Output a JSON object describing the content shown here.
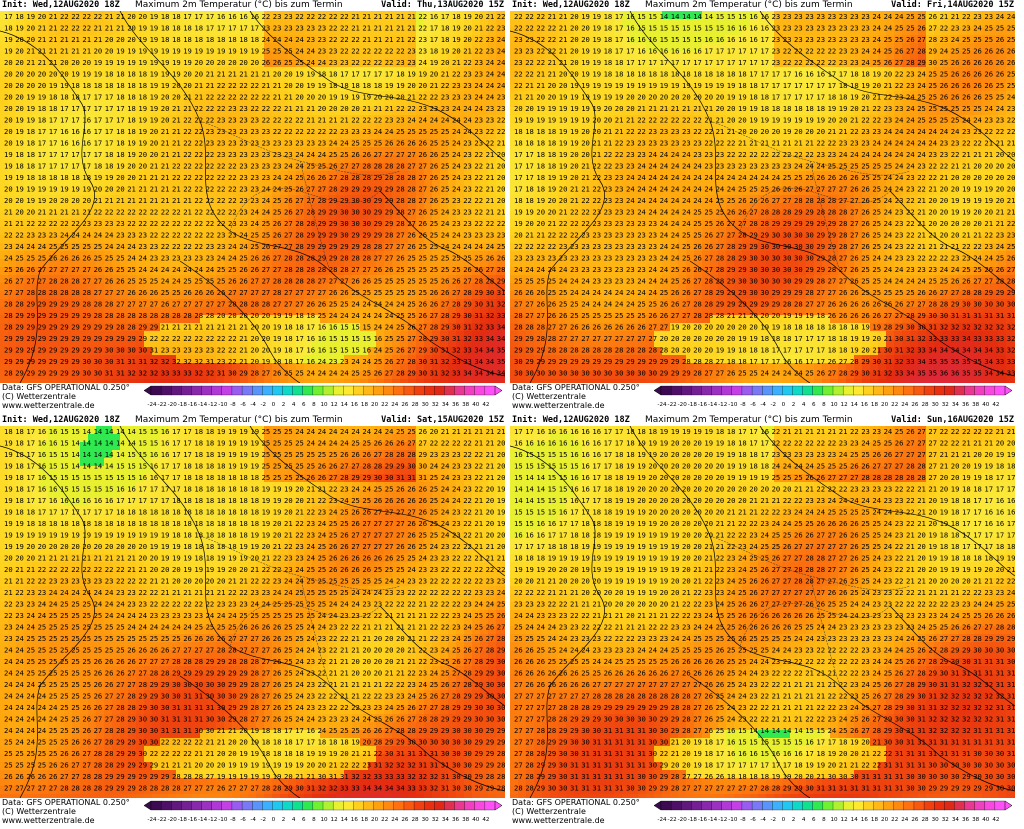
{
  "panels": [
    {
      "init": "Init: Wed,12AUG2020 18Z",
      "title": "Maximum 2m Temperatur (°C) bis zum Termin",
      "valid": "Valid: Thu,13AUG2020 15Z"
    },
    {
      "init": "Init: Wed,12AUG2020 18Z",
      "title": "Maximum 2m Temperatur (°C) bis zum Termin",
      "valid": "Valid: Fri,14AUG2020 15Z"
    },
    {
      "init": "Init: Wed,12AUG2020 18Z",
      "title": "Maximum 2m Temperatur (°C) bis zum Termin",
      "valid": "Valid: Sat,15AUG2020 15Z"
    },
    {
      "init": "Init: Wed,12AUG2020 18Z",
      "title": "Maximum 2m Temperatur (°C) bis zum Termin",
      "valid": "Valid: Sun,16AUG2020 15Z"
    }
  ],
  "footer": {
    "data_line": "Data: GFS OPERATIONAL 0.250°",
    "copyright": "(C) Wetterzentrale",
    "url": "www.wetterzentrale.de"
  },
  "legend": {
    "labels": [
      "-24",
      "-22",
      "-20",
      "-18",
      "-16",
      "-14",
      "-12",
      "-10",
      "-8",
      "-6",
      "-4",
      "-2",
      "0",
      "2",
      "4",
      "6",
      "8",
      "10",
      "12",
      "14",
      "16",
      "18",
      "20",
      "22",
      "24",
      "26",
      "28",
      "30",
      "32",
      "34",
      "36",
      "38",
      "40",
      "42"
    ],
    "colors": [
      "#3b0a50",
      "#4d1066",
      "#60187d",
      "#742094",
      "#8828aa",
      "#9c30c0",
      "#b038d6",
      "#c240e6",
      "#9a5cf0",
      "#7a78f5",
      "#5a94fa",
      "#3cb0ff",
      "#20c8f0",
      "#10d8c8",
      "#10e090",
      "#30e850",
      "#70f030",
      "#b0f030",
      "#e8f030",
      "#ffe830",
      "#ffd020",
      "#ffb818",
      "#ffa010",
      "#ff8810",
      "#ff7010",
      "#f85810",
      "#f04010",
      "#e83010",
      "#e02818",
      "#e03050",
      "#e83890",
      "#f040c0",
      "#f848e0",
      "#ff50f8"
    ]
  }
}
